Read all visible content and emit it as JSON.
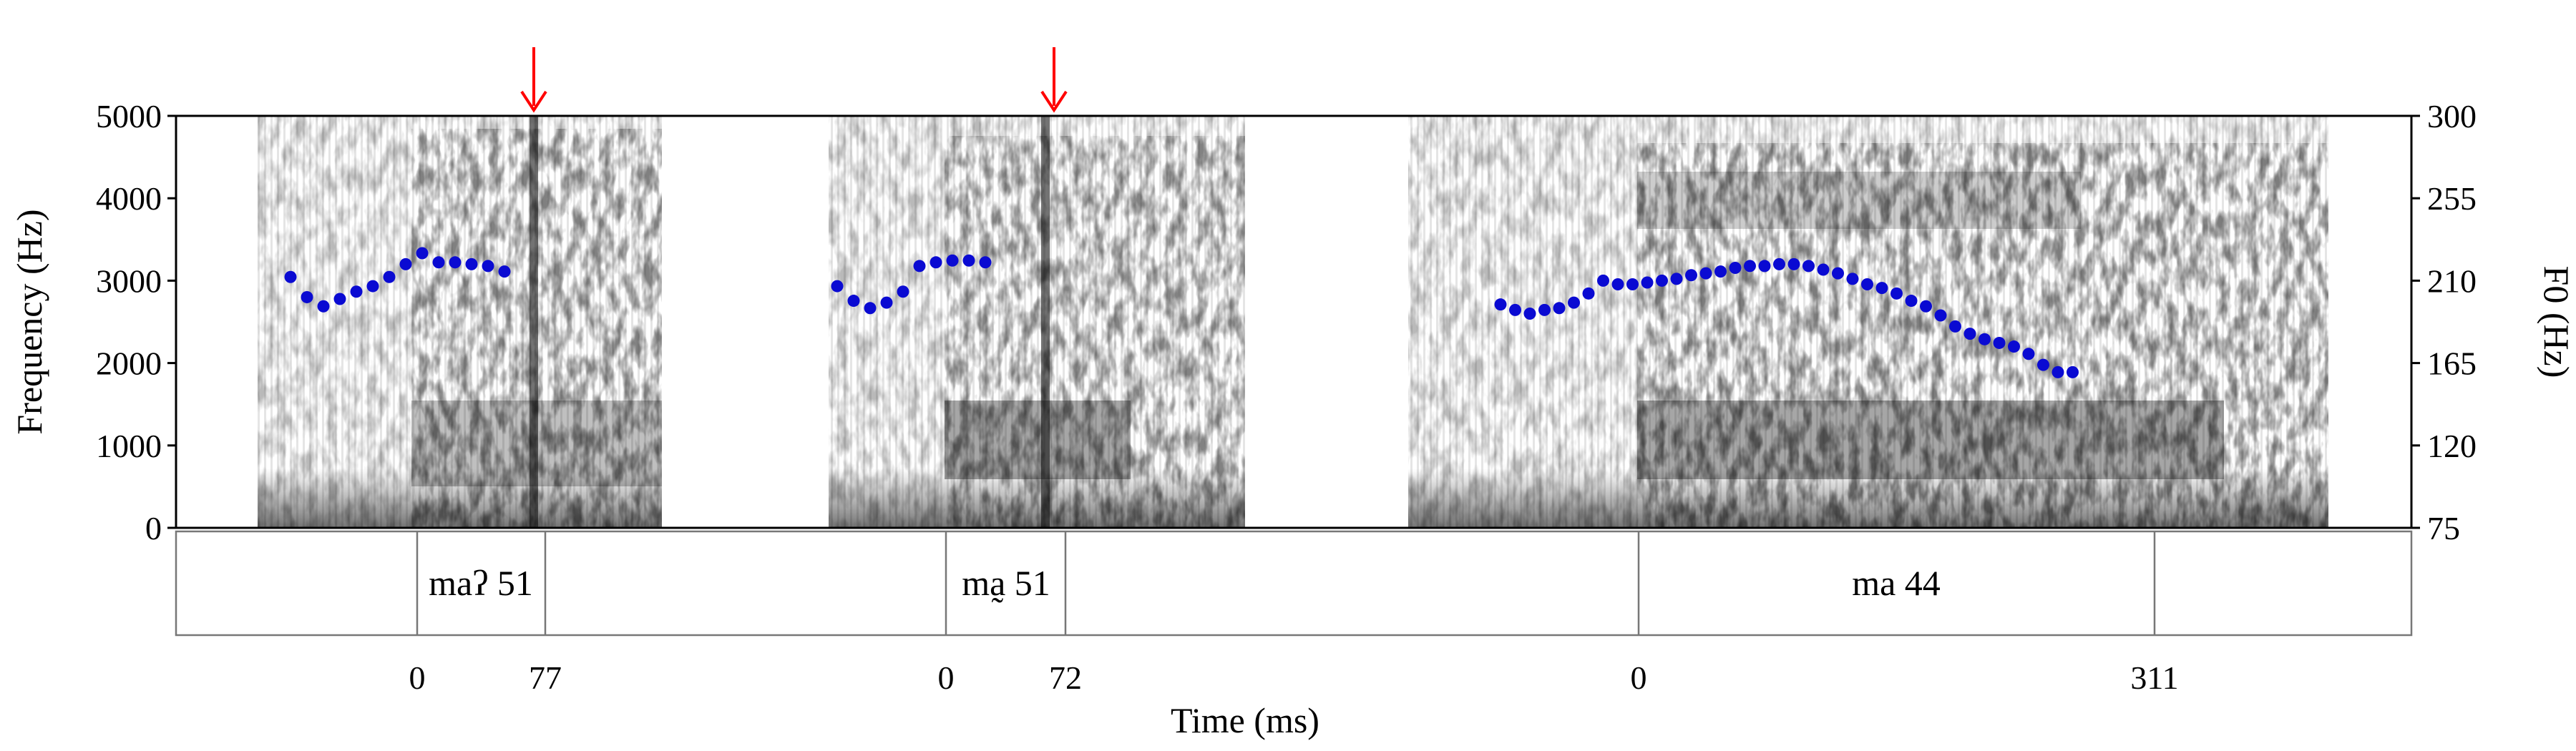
{
  "chart_data": {
    "type": "scatter",
    "title": "",
    "xlabel": "Time (ms)",
    "ylabel_left": "Frequency (Hz)",
    "ylabel_right": "F0 (Hz)",
    "left_axis": {
      "range": [
        0,
        5000
      ],
      "ticks": [
        0,
        1000,
        2000,
        3000,
        4000,
        5000
      ]
    },
    "right_axis": {
      "range": [
        75,
        300
      ],
      "ticks": [
        75,
        120,
        165,
        210,
        255,
        300
      ]
    },
    "grid": false,
    "arrow_color": "#ff0000",
    "point_color": "#0a0ad2",
    "tokens": [
      {
        "label": "maʔ 51",
        "time_labels": [
          "0",
          "77"
        ],
        "arrow_at": "77",
        "f0": [
          212,
          201,
          196,
          200,
          204,
          207,
          212,
          219,
          225,
          220,
          220,
          219,
          218,
          215
        ]
      },
      {
        "label": "ma̰ 51",
        "time_labels": [
          "0",
          "72"
        ],
        "arrow_at": "72",
        "f0": [
          207,
          199,
          195,
          198,
          204,
          218,
          220,
          221,
          221,
          220
        ]
      },
      {
        "label": "ma 44",
        "time_labels": [
          "0",
          "311"
        ],
        "arrow_at": null,
        "f0": [
          197,
          194,
          192,
          194,
          195,
          198,
          203,
          210,
          208,
          208,
          209,
          210,
          211,
          213,
          214,
          215,
          217,
          218,
          218,
          219,
          219,
          218,
          216,
          214,
          211,
          208,
          206,
          203,
          199,
          196,
          191,
          185,
          181,
          178,
          176,
          174,
          170,
          164,
          160,
          160
        ]
      }
    ]
  }
}
